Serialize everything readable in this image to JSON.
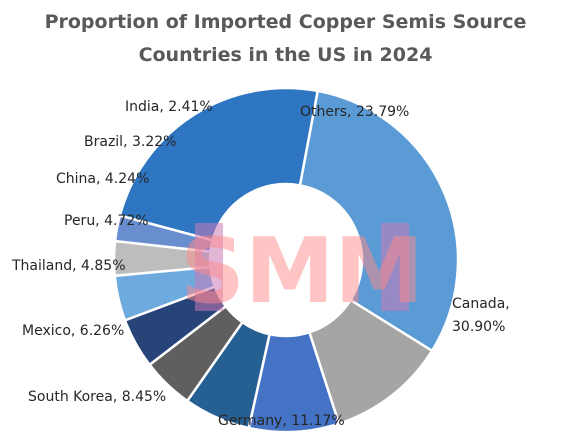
{
  "title": {
    "line1": "Proportion of Imported Copper Semis Source",
    "line2": "Countries in the US in 2024"
  },
  "watermark": {
    "text": "SMM"
  },
  "chart_data": {
    "type": "pie",
    "variant": "donut",
    "title": "Proportion of Imported Copper Semis Source Countries in the US in 2024",
    "unit": "%",
    "slices": [
      {
        "name": "Others",
        "value": 23.79,
        "label": "Others, 23.79%",
        "color": "#2E75C2"
      },
      {
        "name": "Canada",
        "value": 30.9,
        "label_lines": [
          "Canada,",
          "30.90%"
        ],
        "color": "#5B9BD5"
      },
      {
        "name": "Germany",
        "value": 11.17,
        "label": "Germany, 11.17%",
        "color": "#A5A5A5"
      },
      {
        "name": "South Korea",
        "value": 8.45,
        "label": "South Korea, 8.45%",
        "color": "#4472C4"
      },
      {
        "name": "Mexico",
        "value": 6.26,
        "label": "Mexico, 6.26%",
        "color": "#265F91"
      },
      {
        "name": "Thailand",
        "value": 4.85,
        "label": "Thailand, 4.85%",
        "color": "#5F5F5F"
      },
      {
        "name": "Peru",
        "value": 4.72,
        "label": "Peru, 4.72%",
        "color": "#264478"
      },
      {
        "name": "China",
        "value": 4.24,
        "label": "China, 4.24%",
        "color": "#6FAADF"
      },
      {
        "name": "Brazil",
        "value": 3.22,
        "label": "Brazil, 3.22%",
        "color": "#BDBDBD"
      },
      {
        "name": "India",
        "value": 2.41,
        "label": "India, 2.41%",
        "color": "#698ED0"
      }
    ],
    "legend": "none"
  }
}
